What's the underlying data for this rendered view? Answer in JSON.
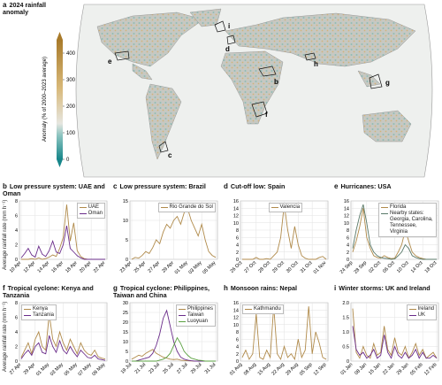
{
  "map": {
    "panel": "a",
    "title": "2024 rainfall anomaly",
    "colorbar_label": "Anomaly (% of 2000–2023 average)",
    "colorbar_lim": [
      0,
      450
    ],
    "colorbar_ticks": [
      0,
      100,
      200,
      300,
      400
    ],
    "region_labels": [
      "b",
      "c",
      "d",
      "e",
      "f",
      "g",
      "h",
      "i"
    ]
  },
  "chart_data": [
    {
      "type": "line",
      "panel": "b",
      "title": "Low pressure system: UAE and Oman",
      "y_label": "Average rainfall rate (mm h⁻¹)",
      "legend": "upper right",
      "categories": [
        "10 Apr",
        null,
        null,
        null,
        "12 Apr",
        null,
        null,
        null,
        "14 Apr",
        null,
        null,
        null,
        "16 Apr",
        null,
        null,
        null,
        "18 Apr",
        null,
        null,
        null,
        "20 Apr",
        null,
        null,
        null,
        "22 Apr"
      ],
      "series": [
        {
          "name": "UAE",
          "color": "#b08a4a",
          "values": [
            0,
            0,
            0,
            0.1,
            0,
            0.2,
            0,
            0.1,
            0.3,
            0.6,
            0.4,
            1.5,
            3,
            7.5,
            2.5,
            5,
            1.2,
            0.4,
            0.1,
            0,
            0,
            0,
            0,
            0,
            0
          ]
        },
        {
          "name": "Oman",
          "color": "#6a2c8a",
          "values": [
            0.2,
            0.8,
            1.5,
            0.6,
            0.3,
            1.8,
            0.7,
            0.4,
            1.2,
            2.5,
            1,
            0.8,
            2,
            4.6,
            1.5,
            1,
            0.5,
            0.2,
            0,
            0,
            0,
            0,
            0,
            0,
            0
          ]
        }
      ],
      "ylim": [
        0,
        8
      ],
      "yticks": [
        0,
        2,
        4,
        6,
        8
      ],
      "grid": true
    },
    {
      "type": "line",
      "panel": "c",
      "title": "Low pressure system: Brazil",
      "legend": "upper center",
      "categories": [
        "23 Apr",
        null,
        null,
        null,
        "25 Apr",
        null,
        null,
        null,
        "27 Apr",
        null,
        null,
        null,
        "29 Apr",
        null,
        null,
        null,
        "01 May",
        null,
        null,
        null,
        "03 May",
        null,
        null,
        null,
        "05 May"
      ],
      "series": [
        {
          "name": "Rio Grande do Sol",
          "color": "#b08a4a",
          "values": [
            0,
            0.5,
            0.3,
            1,
            2,
            1.5,
            3,
            5,
            4,
            7,
            9,
            8,
            10,
            11,
            9,
            12,
            13,
            10,
            8,
            6,
            9,
            5,
            2,
            1,
            0.5
          ]
        }
      ],
      "ylim": [
        0,
        15
      ],
      "yticks": [
        0,
        5,
        10,
        15
      ],
      "grid": true
    },
    {
      "type": "line",
      "panel": "d",
      "title": "Cut-off low: Spain",
      "legend": "upper center",
      "categories": [
        "26 Oct",
        null,
        null,
        null,
        "27 Oct",
        null,
        null,
        null,
        "28 Oct",
        null,
        null,
        null,
        "29 Oct",
        null,
        null,
        null,
        "30 Oct",
        null,
        null,
        null,
        "31 Oct",
        null,
        null,
        null,
        "01 Nov"
      ],
      "series": [
        {
          "name": "Valencia",
          "color": "#b08a4a",
          "values": [
            0,
            0,
            0,
            0,
            0.5,
            0,
            0,
            0.2,
            0,
            1,
            2,
            6,
            15,
            8,
            3,
            9,
            4,
            1,
            0.3,
            0,
            0,
            0,
            0.5,
            0.8,
            0
          ]
        }
      ],
      "ylim": [
        0,
        16
      ],
      "yticks": [
        0,
        2,
        4,
        6,
        8,
        10,
        12,
        14,
        16
      ],
      "grid": true
    },
    {
      "type": "line",
      "panel": "e",
      "title": "Hurricanes: USA",
      "legend": "upper right",
      "categories": [
        "24 Sep",
        null,
        null,
        null,
        "28 Sep",
        null,
        null,
        null,
        "02 Oct",
        null,
        null,
        null,
        "06 Oct",
        null,
        null,
        null,
        "10 Oct",
        null,
        null,
        null,
        "14 Oct",
        null,
        null,
        null,
        "18 Oct"
      ],
      "series": [
        {
          "name": "Florida",
          "color": "#b08a4a",
          "values": [
            2,
            5,
            9,
            14,
            6,
            3,
            1,
            0.5,
            0.3,
            1,
            0.5,
            0.2,
            0.3,
            2,
            4,
            8,
            5,
            2,
            1,
            0.5,
            0.2,
            0,
            0,
            0,
            0
          ]
        },
        {
          "name": "Nearby states: Georgia, Carolina, Tennessee, Virginia",
          "color": "#5a7a6a",
          "values": [
            3,
            8,
            12,
            15,
            10,
            4,
            2,
            1,
            0.5,
            0.3,
            0.2,
            0,
            0.1,
            1,
            2,
            4,
            3,
            1,
            0.5,
            0.2,
            0,
            0,
            0,
            0,
            0
          ]
        }
      ],
      "ylim": [
        0,
        16
      ],
      "yticks": [
        0,
        2,
        4,
        6,
        8,
        10,
        12,
        14,
        16
      ],
      "grid": true
    },
    {
      "type": "line",
      "panel": "f",
      "title": "Tropical cyclone: Kenya and Tanzania",
      "y_label": "Average rainfall rate (mm h⁻¹)",
      "legend": "upper left",
      "categories": [
        "27 Apr",
        null,
        null,
        null,
        "29 Apr",
        null,
        null,
        null,
        "01 May",
        null,
        null,
        null,
        "03 May",
        null,
        null,
        null,
        "05 May",
        null,
        null,
        null,
        "07 May",
        null,
        null,
        null,
        "09 May"
      ],
      "series": [
        {
          "name": "Kenya",
          "color": "#b08a4a",
          "values": [
            0.5,
            1.5,
            2.5,
            1,
            3,
            4,
            2,
            1.5,
            6.5,
            3,
            2,
            4,
            2.5,
            1.5,
            3,
            2,
            1,
            2.5,
            1.5,
            1,
            0.8,
            1.5,
            0.6,
            0.4,
            0.3
          ]
        },
        {
          "name": "Tanzania",
          "color": "#6a2c8a",
          "values": [
            0.3,
            1,
            1.5,
            0.8,
            2,
            2.5,
            1.2,
            1,
            3.5,
            2,
            1.2,
            2.8,
            1.5,
            1,
            2,
            1.2,
            0.6,
            1.5,
            1,
            0.5,
            0.4,
            0.8,
            0.3,
            0.2,
            0.1
          ]
        }
      ],
      "ylim": [
        0,
        8
      ],
      "yticks": [
        0,
        2,
        4,
        6,
        8
      ],
      "grid": true
    },
    {
      "type": "line",
      "panel": "g",
      "title": "Tropical cyclone: Philippines, Taiwan and China",
      "legend": "upper right",
      "categories": [
        "19 Jul",
        null,
        null,
        null,
        "21 Jul",
        null,
        null,
        null,
        "23 Jul",
        null,
        null,
        null,
        "25 Jul",
        null,
        null,
        null,
        "27 Jul",
        null,
        null,
        null,
        "29 Jul",
        null,
        null,
        null,
        "31 Jul"
      ],
      "series": [
        {
          "name": "Philippines",
          "color": "#b08a4a",
          "values": [
            1,
            2,
            3,
            2.5,
            4,
            5,
            6,
            4,
            3,
            2,
            1.5,
            1,
            0.8,
            1,
            0.5,
            0.3,
            0.2,
            0.1,
            0,
            0,
            0,
            0,
            0,
            0,
            0
          ]
        },
        {
          "name": "Taiwan",
          "color": "#6a2c8a",
          "values": [
            0,
            0,
            0.5,
            1,
            1.5,
            2,
            4,
            8,
            14,
            22,
            26,
            18,
            10,
            5,
            2,
            1,
            0.5,
            0.2,
            0,
            0,
            0,
            0,
            0,
            0,
            0
          ]
        },
        {
          "name": "Luoyuan",
          "color": "#5aa040",
          "values": [
            0,
            0,
            0,
            0,
            0,
            0,
            0,
            0,
            0.5,
            1,
            2,
            4,
            8,
            12,
            9,
            5,
            3,
            1.5,
            1,
            0.5,
            0.3,
            0,
            0,
            0,
            0
          ]
        }
      ],
      "ylim": [
        0,
        30
      ],
      "yticks": [
        0,
        5,
        10,
        15,
        20,
        25,
        30
      ],
      "grid": true
    },
    {
      "type": "line",
      "panel": "h",
      "title": "Monsoon rains: Nepal",
      "legend": "upper left",
      "categories": [
        "01 Aug",
        null,
        null,
        null,
        "08 Aug",
        null,
        null,
        null,
        "15 Aug",
        null,
        null,
        null,
        "22 Aug",
        null,
        null,
        null,
        "29 Aug",
        null,
        null,
        null,
        "05 Sep",
        null,
        null,
        null,
        "12 Sep"
      ],
      "series": [
        {
          "name": "Kathmandu",
          "color": "#b08a4a",
          "values": [
            1,
            3,
            0.5,
            2,
            13,
            1,
            0.5,
            3,
            1,
            15,
            2,
            0.5,
            4,
            1,
            2,
            0.5,
            6,
            1,
            3,
            15,
            2,
            8,
            5,
            1,
            0.5
          ]
        }
      ],
      "ylim": [
        0,
        16
      ],
      "yticks": [
        0,
        2,
        4,
        6,
        8,
        10,
        12,
        14,
        16
      ],
      "grid": true
    },
    {
      "type": "line",
      "panel": "i",
      "title": "Winter storms: UK and Ireland",
      "legend": "upper right",
      "categories": [
        "01 Jan",
        null,
        null,
        null,
        "08 Jan",
        null,
        null,
        null,
        "15 Jan",
        null,
        null,
        null,
        "22 Jan",
        null,
        null,
        null,
        "29 Jan",
        null,
        null,
        null,
        "05 Feb",
        null,
        null,
        null,
        "12 Feb"
      ],
      "series": [
        {
          "name": "Ireland",
          "color": "#b08a4a",
          "values": [
            1.8,
            0.3,
            0.1,
            0.5,
            0.2,
            0.1,
            0.6,
            0.2,
            0.3,
            1.2,
            0.4,
            0.2,
            0.8,
            0.3,
            0.2,
            0.5,
            0.1,
            0.3,
            0.6,
            0.2,
            0.4,
            0.1,
            0.2,
            0.3,
            0.1
          ]
        },
        {
          "name": "UK",
          "color": "#6a2c8a",
          "values": [
            1.2,
            0.4,
            0.2,
            0.3,
            0.1,
            0.2,
            0.4,
            0.1,
            0.2,
            0.9,
            0.3,
            0.1,
            0.5,
            0.2,
            0.1,
            0.3,
            0.1,
            0.2,
            0.4,
            0.1,
            0.3,
            0.1,
            0.1,
            0.2,
            0.1
          ]
        }
      ],
      "ylim": [
        0,
        2
      ],
      "yticks": [
        0,
        0.5,
        {
          "value": 1,
          "label": "1.0"
        },
        1.5,
        {
          "value": 2,
          "label": "2.0"
        }
      ],
      "grid": true
    }
  ]
}
